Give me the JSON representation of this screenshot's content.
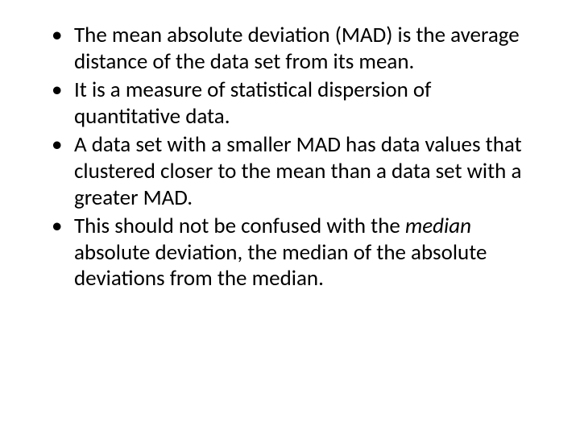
{
  "slide": {
    "background_color": "#ffffff",
    "text_color": "#000000",
    "font_family": "Calibri",
    "body_fontsize_pt": 27,
    "line_height": 1.22,
    "bullets": [
      {
        "pre": "The mean absolute deviation (MAD) is the average distance of the data set from its mean.",
        "italic": "",
        "post": ""
      },
      {
        "pre": "It is a measure of statistical dispersion of quantitative data.",
        "italic": "",
        "post": ""
      },
      {
        "pre": "A data set with a smaller MAD has data values that clustered closer to the mean than a data set with a greater MAD.",
        "italic": "",
        "post": ""
      },
      {
        "pre": "This should not be confused with the ",
        "italic": "median",
        "post": " absolute deviation, the median of the absolute deviations from the median."
      }
    ]
  }
}
